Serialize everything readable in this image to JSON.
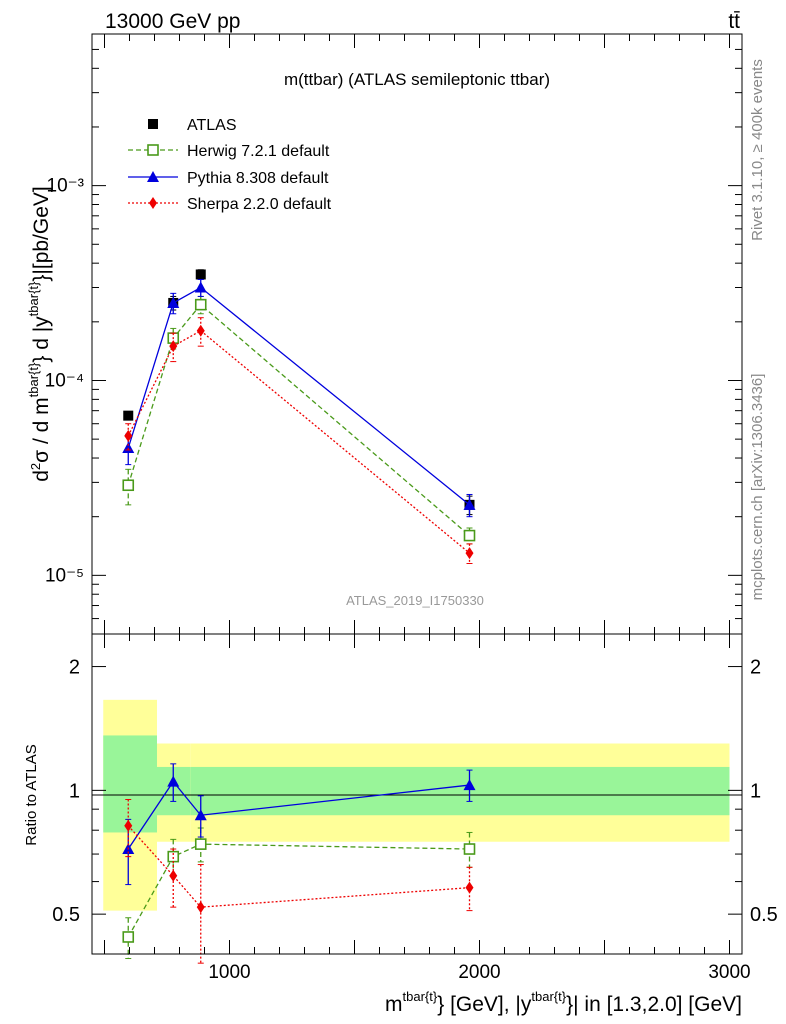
{
  "header": {
    "left": "13000 GeV pp",
    "right": "tt̄"
  },
  "side_labels": {
    "rivet": "Rivet 3.1.10, ≥ 400k events",
    "source": "mcplots.cern.ch [arXiv:1306.3436]"
  },
  "colors": {
    "atlas": "#000000",
    "herwig": "#4a9a1a",
    "pythia": "#0000dd",
    "sherpa": "#ee0000",
    "band_inner": "#99f599",
    "band_outer": "#ffff99"
  },
  "chart_data": [
    {
      "type": "line",
      "title": "m(ttbar) (ATLAS semileptonic ttbar)",
      "watermark": "ATLAS_2019_I1750330",
      "ylabel": "d²σ / d m^{tbar{t}} d |y^{tbar{t}}|[pb/GeV]",
      "yscale": "log",
      "ylim": [
        5e-06,
        0.006
      ],
      "xlim": [
        450,
        3050
      ],
      "y_ticks": [
        "10⁻⁵",
        "10⁻⁴",
        "10⁻³"
      ],
      "legend_position": "top-left",
      "x": [
        595,
        775,
        885,
        1960
      ],
      "series": [
        {
          "name": "ATLAS",
          "marker": "square",
          "values": [
            6.6e-05,
            0.00025,
            0.00035,
            2.3e-05
          ],
          "err": [
            3e-06,
            2e-05,
            2e-05,
            2.5e-06
          ]
        },
        {
          "name": "Herwig 7.2.1 default",
          "marker": "open-square",
          "dash": "dashed",
          "values": [
            2.9e-05,
            0.000165,
            0.000245,
            1.6e-05
          ],
          "err": [
            6e-06,
            2e-05,
            2.5e-05,
            1.5e-06
          ]
        },
        {
          "name": "Pythia 8.308 default",
          "marker": "triangle",
          "dash": "solid",
          "values": [
            4.5e-05,
            0.00025,
            0.0003,
            2.3e-05
          ],
          "err": [
            8e-06,
            3e-05,
            3e-05,
            3e-06
          ]
        },
        {
          "name": "Sherpa 2.2.0 default",
          "marker": "diamond",
          "dash": "dotted",
          "values": [
            5.2e-05,
            0.00015,
            0.00018,
            1.3e-05
          ],
          "err": [
            8e-06,
            2.5e-05,
            3e-05,
            1.5e-06
          ]
        }
      ]
    },
    {
      "type": "line",
      "ylabel": "Ratio to ATLAS",
      "xlabel": "m^{tbar{t}} [GeV], |y^{tbar{t}}| in [1.3,2.0] [GeV]",
      "xlim": [
        450,
        3050
      ],
      "ylim": [
        0.4,
        2.4
      ],
      "x_ticks": [
        "1000",
        "2000",
        "3000"
      ],
      "y_ticks": [
        "0.5",
        "1",
        "2"
      ],
      "bands": [
        {
          "x_from": 495,
          "x_to": 710,
          "inner": [
            0.79,
            1.36
          ],
          "outer": [
            0.51,
            1.66
          ]
        },
        {
          "x_from": 710,
          "x_to": 845,
          "inner": [
            0.87,
            1.14
          ],
          "outer": [
            0.75,
            1.3
          ]
        },
        {
          "x_from": 845,
          "x_to": 3000,
          "inner": [
            0.87,
            1.14
          ],
          "outer": [
            0.75,
            1.3
          ]
        }
      ],
      "x": [
        595,
        775,
        885,
        1960
      ],
      "series": [
        {
          "name": "Herwig 7.2.1 default",
          "marker": "open-square",
          "dash": "dashed",
          "values": [
            0.44,
            0.69,
            0.74,
            0.72
          ],
          "err": [
            0.05,
            0.07,
            0.07,
            0.07
          ]
        },
        {
          "name": "Pythia 8.308 default",
          "marker": "triangle",
          "dash": "solid",
          "values": [
            0.72,
            1.05,
            0.87,
            1.03
          ],
          "err": [
            0.13,
            0.11,
            0.1,
            0.09
          ]
        },
        {
          "name": "Sherpa 2.2.0 default",
          "marker": "diamond",
          "dash": "dotted",
          "values": [
            0.82,
            0.62,
            0.52,
            0.58
          ],
          "err": [
            0.13,
            0.1,
            0.14,
            0.07
          ]
        }
      ]
    }
  ]
}
